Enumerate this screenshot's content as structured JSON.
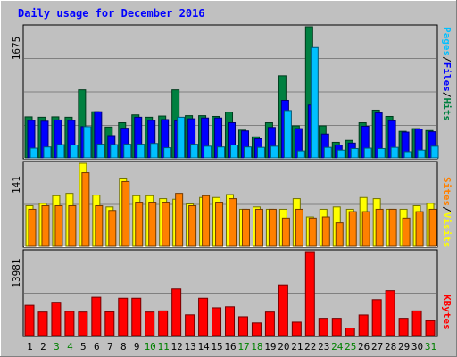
{
  "chart_data": [
    {
      "type": "bar",
      "panel": "top",
      "title": "Daily usage for December 2016",
      "ymax_label": "1675",
      "ylim": [
        0,
        1675
      ],
      "categories": [
        "1",
        "2",
        "3",
        "4",
        "5",
        "6",
        "7",
        "8",
        "9",
        "10",
        "11",
        "12",
        "13",
        "14",
        "15",
        "16",
        "17",
        "18",
        "19",
        "20",
        "21",
        "22",
        "23",
        "24",
        "25",
        "26",
        "27",
        "28",
        "29",
        "30",
        "31"
      ],
      "series": [
        {
          "name": "Hits",
          "values": [
            525,
            520,
            525,
            520,
            870,
            590,
            395,
            450,
            550,
            520,
            535,
            870,
            540,
            540,
            530,
            585,
            355,
            270,
            450,
            1050,
            410,
            1675,
            410,
            200,
            225,
            450,
            610,
            530,
            340,
            375,
            350
          ]
        },
        {
          "name": "Files",
          "values": [
            480,
            470,
            485,
            480,
            400,
            590,
            285,
            380,
            520,
            480,
            490,
            475,
            500,
            510,
            510,
            450,
            345,
            245,
            390,
            735,
            375,
            675,
            305,
            165,
            190,
            405,
            575,
            475,
            330,
            370,
            335
          ]
        },
        {
          "name": "Pages",
          "values": [
            125,
            140,
            170,
            165,
            400,
            175,
            170,
            175,
            175,
            185,
            130,
            520,
            175,
            150,
            140,
            165,
            140,
            135,
            150,
            605,
            90,
            1410,
            135,
            100,
            120,
            125,
            120,
            135,
            80,
            100,
            150
          ]
        }
      ],
      "legend": [
        "Pages",
        "Files",
        "Hits"
      ]
    },
    {
      "type": "bar",
      "panel": "middle",
      "ymax_label": "141",
      "ylim": [
        0,
        141
      ],
      "categories": [
        "1",
        "2",
        "3",
        "4",
        "5",
        "6",
        "7",
        "8",
        "9",
        "10",
        "11",
        "12",
        "13",
        "14",
        "15",
        "16",
        "17",
        "18",
        "19",
        "20",
        "21",
        "22",
        "23",
        "24",
        "25",
        "26",
        "27",
        "28",
        "29",
        "30",
        "31"
      ],
      "series": [
        {
          "name": "Visits",
          "values": [
            69,
            73,
            86,
            90,
            141,
            87,
            67,
            116,
            86,
            86,
            81,
            80,
            72,
            83,
            83,
            88,
            63,
            67,
            63,
            63,
            81,
            50,
            63,
            67,
            63,
            83,
            81,
            63,
            63,
            69,
            73
          ]
        },
        {
          "name": "Sites",
          "values": [
            63,
            69,
            69,
            69,
            125,
            69,
            61,
            110,
            75,
            75,
            75,
            90,
            69,
            86,
            75,
            81,
            63,
            63,
            63,
            48,
            63,
            48,
            50,
            40,
            59,
            59,
            63,
            63,
            48,
            59,
            63
          ]
        }
      ],
      "legend": [
        "Sites",
        "Visits"
      ]
    },
    {
      "type": "bar",
      "panel": "bottom",
      "ymax_label": "13981",
      "ylim": [
        0,
        13981
      ],
      "categories": [
        "1",
        "2",
        "3",
        "4",
        "5",
        "6",
        "7",
        "8",
        "9",
        "10",
        "11",
        "12",
        "13",
        "14",
        "15",
        "16",
        "17",
        "18",
        "19",
        "20",
        "21",
        "22",
        "23",
        "24",
        "25",
        "26",
        "27",
        "28",
        "29",
        "30",
        "31"
      ],
      "series": [
        {
          "name": "KBytes",
          "values": [
            5040,
            3920,
            5550,
            4030,
            3920,
            6380,
            3960,
            6210,
            6210,
            3920,
            4110,
            7770,
            3450,
            6210,
            4620,
            4790,
            3130,
            2110,
            3920,
            8450,
            2240,
            13981,
            2880,
            2880,
            1260,
            3430,
            5980,
            7490,
            2880,
            4110,
            2480
          ]
        }
      ],
      "legend": [
        "KBytes"
      ]
    }
  ],
  "colors": {
    "background": "#c0c0c0",
    "plot_bg": "#c0c0c0",
    "title": "#0000ff",
    "hits": "#008040",
    "files": "#0000ff",
    "pages": "#00c0ff",
    "sites": "#ff8000",
    "visits": "#ffff00",
    "kbytes": "#ff0000",
    "weekend_label": "#008000"
  },
  "weekend_days": [
    "3",
    "4",
    "10",
    "11",
    "17",
    "18",
    "24",
    "25",
    "31"
  ],
  "legend_separator": "/"
}
